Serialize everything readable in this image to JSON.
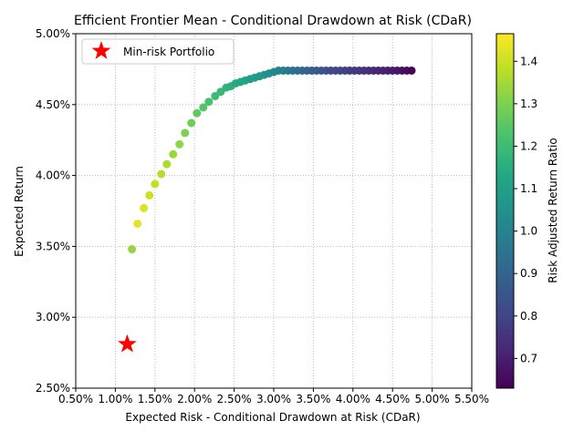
{
  "chart_data": {
    "type": "scatter",
    "title": "Efficient Frontier Mean - Conditional Drawdown at Risk (CDaR)",
    "xlabel": "Expected Risk - Conditional Drawdown at Risk (CDaR)",
    "ylabel": "Expected Return",
    "xlim": [
      0.005,
      0.055
    ],
    "ylim": [
      0.025,
      0.05
    ],
    "x_ticks": [
      0.005,
      0.01,
      0.015,
      0.02,
      0.025,
      0.03,
      0.035,
      0.04,
      0.045,
      0.05,
      0.055
    ],
    "x_tick_labels": [
      "0.50%",
      "1.00%",
      "1.50%",
      "2.00%",
      "2.50%",
      "3.00%",
      "3.50%",
      "4.00%",
      "4.50%",
      "5.00%",
      "5.50%"
    ],
    "y_ticks": [
      0.025,
      0.03,
      0.035,
      0.04,
      0.045,
      0.05
    ],
    "y_tick_labels": [
      "2.50%",
      "3.00%",
      "3.50%",
      "4.00%",
      "4.50%",
      "5.00%"
    ],
    "grid": true,
    "colormap": "viridis",
    "colorbar": {
      "label": "Risk Adjusted Return Ratio",
      "range": [
        0.63,
        1.465
      ],
      "ticks": [
        0.7,
        0.8,
        0.9,
        1.0,
        1.1,
        1.2,
        1.3,
        1.4
      ],
      "tick_labels": [
        "0.7",
        "0.8",
        "0.9",
        "1.0",
        "1.1",
        "1.2",
        "1.3",
        "1.4"
      ]
    },
    "legend": {
      "placement": "top-left",
      "label": "Min-risk Portfolio",
      "marker_color": "#ff0000"
    },
    "min_risk_point": {
      "x": 0.0115,
      "y": 0.0281
    },
    "series": [
      {
        "points": [
          {
            "x": 0.0121,
            "y": 0.0348,
            "c": 1.33
          },
          {
            "x": 0.0128,
            "y": 0.0366,
            "c": 1.43
          },
          {
            "x": 0.0136,
            "y": 0.0377,
            "c": 1.42
          },
          {
            "x": 0.0143,
            "y": 0.0386,
            "c": 1.4
          },
          {
            "x": 0.015,
            "y": 0.0394,
            "c": 1.39
          },
          {
            "x": 0.0158,
            "y": 0.0401,
            "c": 1.37
          },
          {
            "x": 0.0165,
            "y": 0.0408,
            "c": 1.36
          },
          {
            "x": 0.0173,
            "y": 0.0415,
            "c": 1.34
          },
          {
            "x": 0.0181,
            "y": 0.0422,
            "c": 1.32
          },
          {
            "x": 0.0188,
            "y": 0.043,
            "c": 1.3
          },
          {
            "x": 0.0196,
            "y": 0.0437,
            "c": 1.28
          },
          {
            "x": 0.0203,
            "y": 0.0444,
            "c": 1.26
          },
          {
            "x": 0.0211,
            "y": 0.0448,
            "c": 1.24
          },
          {
            "x": 0.0218,
            "y": 0.0452,
            "c": 1.22
          },
          {
            "x": 0.0226,
            "y": 0.0456,
            "c": 1.2
          },
          {
            "x": 0.0233,
            "y": 0.0459,
            "c": 1.19
          },
          {
            "x": 0.024,
            "y": 0.0462,
            "c": 1.17
          },
          {
            "x": 0.0246,
            "y": 0.0463,
            "c": 1.16
          },
          {
            "x": 0.0252,
            "y": 0.0465,
            "c": 1.14
          },
          {
            "x": 0.0258,
            "y": 0.0466,
            "c": 1.13
          },
          {
            "x": 0.0264,
            "y": 0.0467,
            "c": 1.12
          },
          {
            "x": 0.027,
            "y": 0.0468,
            "c": 1.1
          },
          {
            "x": 0.0276,
            "y": 0.0469,
            "c": 1.09
          },
          {
            "x": 0.0282,
            "y": 0.047,
            "c": 1.08
          },
          {
            "x": 0.0288,
            "y": 0.0471,
            "c": 1.06
          },
          {
            "x": 0.0294,
            "y": 0.0472,
            "c": 1.04
          },
          {
            "x": 0.03,
            "y": 0.0473,
            "c": 1.02
          },
          {
            "x": 0.0306,
            "y": 0.0474,
            "c": 1.0
          },
          {
            "x": 0.0312,
            "y": 0.0474,
            "c": 0.98
          },
          {
            "x": 0.0318,
            "y": 0.0474,
            "c": 0.96
          },
          {
            "x": 0.0324,
            "y": 0.0474,
            "c": 0.95
          },
          {
            "x": 0.033,
            "y": 0.0474,
            "c": 0.93
          },
          {
            "x": 0.0336,
            "y": 0.0474,
            "c": 0.91
          },
          {
            "x": 0.0342,
            "y": 0.0474,
            "c": 0.9
          },
          {
            "x": 0.0348,
            "y": 0.0474,
            "c": 0.88
          },
          {
            "x": 0.0354,
            "y": 0.0474,
            "c": 0.87
          },
          {
            "x": 0.036,
            "y": 0.0474,
            "c": 0.85
          },
          {
            "x": 0.0366,
            "y": 0.0474,
            "c": 0.84
          },
          {
            "x": 0.0372,
            "y": 0.0474,
            "c": 0.82
          },
          {
            "x": 0.0378,
            "y": 0.0474,
            "c": 0.81
          },
          {
            "x": 0.0384,
            "y": 0.0474,
            "c": 0.8
          },
          {
            "x": 0.039,
            "y": 0.0474,
            "c": 0.79
          },
          {
            "x": 0.0396,
            "y": 0.0474,
            "c": 0.78
          },
          {
            "x": 0.0402,
            "y": 0.0474,
            "c": 0.77
          },
          {
            "x": 0.0408,
            "y": 0.0474,
            "c": 0.76
          },
          {
            "x": 0.0414,
            "y": 0.0474,
            "c": 0.75
          },
          {
            "x": 0.042,
            "y": 0.0474,
            "c": 0.74
          },
          {
            "x": 0.0426,
            "y": 0.0474,
            "c": 0.73
          },
          {
            "x": 0.0432,
            "y": 0.0474,
            "c": 0.72
          },
          {
            "x": 0.0438,
            "y": 0.0474,
            "c": 0.71
          },
          {
            "x": 0.0444,
            "y": 0.0474,
            "c": 0.7
          },
          {
            "x": 0.045,
            "y": 0.0474,
            "c": 0.69
          },
          {
            "x": 0.0456,
            "y": 0.0474,
            "c": 0.68
          },
          {
            "x": 0.0462,
            "y": 0.0474,
            "c": 0.67
          },
          {
            "x": 0.0468,
            "y": 0.0474,
            "c": 0.66
          },
          {
            "x": 0.0474,
            "y": 0.0474,
            "c": 0.64
          }
        ]
      }
    ]
  }
}
